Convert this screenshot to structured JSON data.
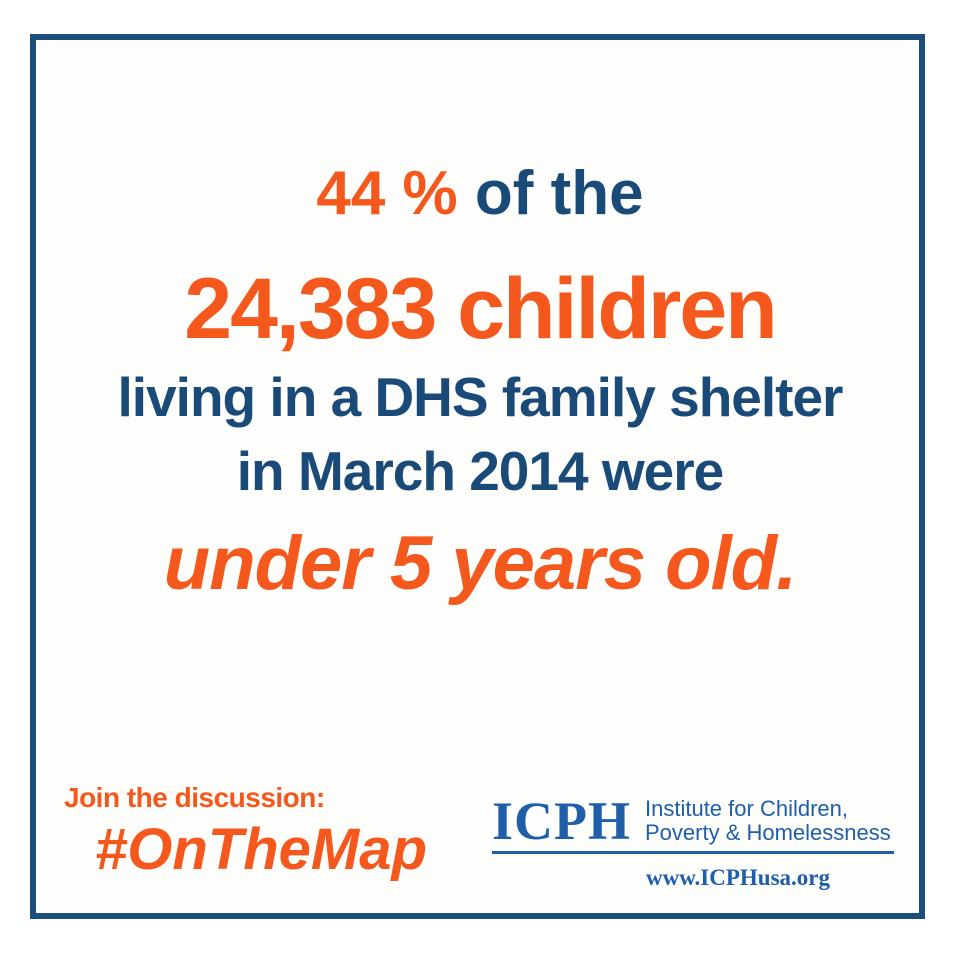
{
  "page": {
    "background": "#ffffff",
    "border_color": "#1C4E79"
  },
  "colors": {
    "accent_orange": "#F5581C",
    "text_navy": "#1A4A77",
    "logo_blue": "#1F5EA8"
  },
  "message": {
    "line1_highlight": "44 %",
    "line1_rest": " of the",
    "line2": "24,383 children",
    "line3": "living in a DHS family shelter",
    "line4": "in March 2014 were",
    "line5": "under 5 years old."
  },
  "footer": {
    "cta": "Join the discussion:",
    "hashtag": "#OnTheMap",
    "logo": {
      "acronym": "ICPH",
      "org_line1": "Institute for Children,",
      "org_line2": "Poverty & Homelessness",
      "website": "www.ICPHusa.org"
    }
  }
}
